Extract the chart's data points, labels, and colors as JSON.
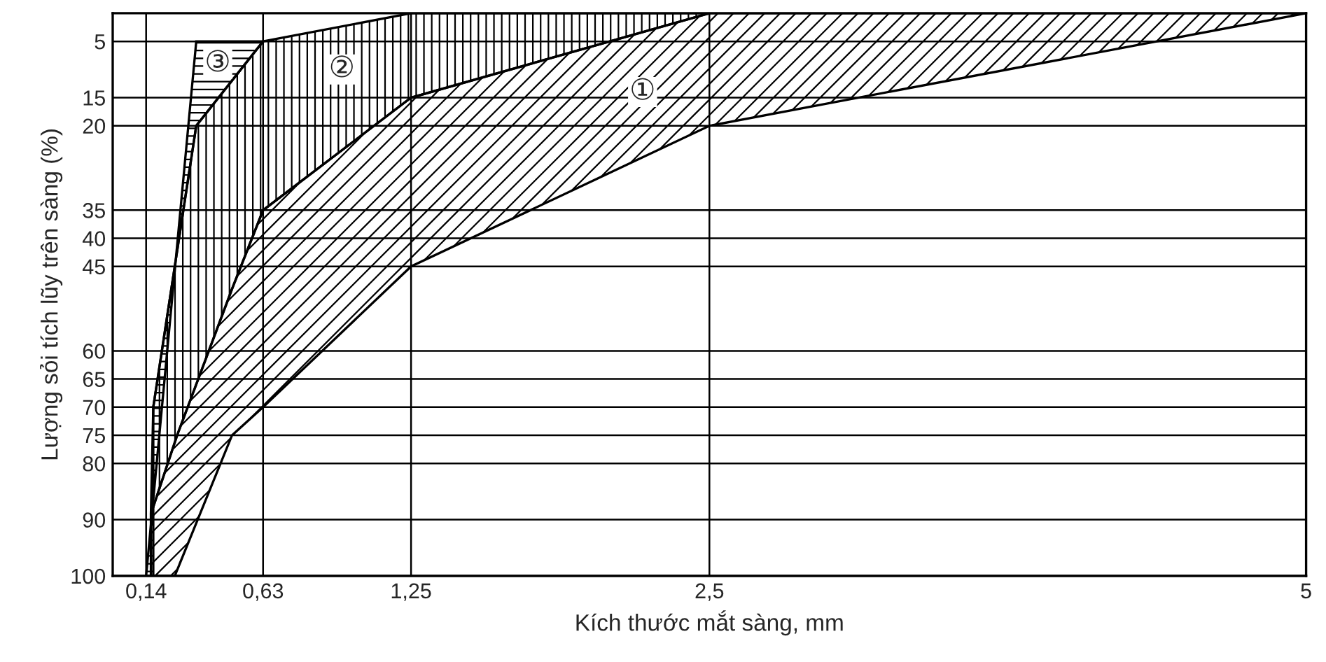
{
  "chart_data": {
    "type": "area",
    "xlabel": "Kích thước mắt sàng, mm",
    "ylabel": "Lượng sỏi tích lũy trên sàng (%)",
    "xlim": [
      0,
      5
    ],
    "ylim": [
      100,
      0
    ],
    "xticks": [
      {
        "value": 0.14,
        "label": "0,14"
      },
      {
        "value": 0.63,
        "label": "0,63"
      },
      {
        "value": 1.25,
        "label": "1,25"
      },
      {
        "value": 2.5,
        "label": "2,5"
      },
      5
    ],
    "yticks": [
      5,
      15,
      20,
      35,
      40,
      45,
      60,
      65,
      70,
      75,
      80,
      90,
      100
    ],
    "grid": true,
    "series": [
      {
        "color": "#000000",
        "x": [
          5,
          2.5,
          1.25,
          0.63,
          0.5,
          0.27,
          0.16,
          0.16,
          0.26,
          0.5,
          0.63,
          1.25,
          2.5
        ],
        "values": [
          0,
          0,
          15,
          35,
          49,
          75,
          89,
          100,
          100,
          75,
          70,
          45,
          20
        ]
      },
      {
        "color": "#000000",
        "x": [
          0.63,
          1.25,
          2.5,
          1.25,
          0.63,
          0.5,
          0.27,
          0.16,
          0.17,
          0.35
        ],
        "values": [
          5,
          0,
          0,
          15,
          35,
          49,
          75,
          89,
          70,
          20
        ]
      },
      {
        "color": "#000000",
        "x": [
          0.35,
          0.63,
          0.35,
          0.17,
          0.17,
          0.14
        ],
        "values": [
          5,
          5,
          20,
          70,
          100,
          100
        ]
      }
    ],
    "annotations": [
      {
        "text": "①",
        "x": 2.22,
        "y": 14
      },
      {
        "text": "②",
        "x": 0.96,
        "y": 10
      },
      {
        "text": "③",
        "x": 0.44,
        "y": 9
      }
    ]
  }
}
